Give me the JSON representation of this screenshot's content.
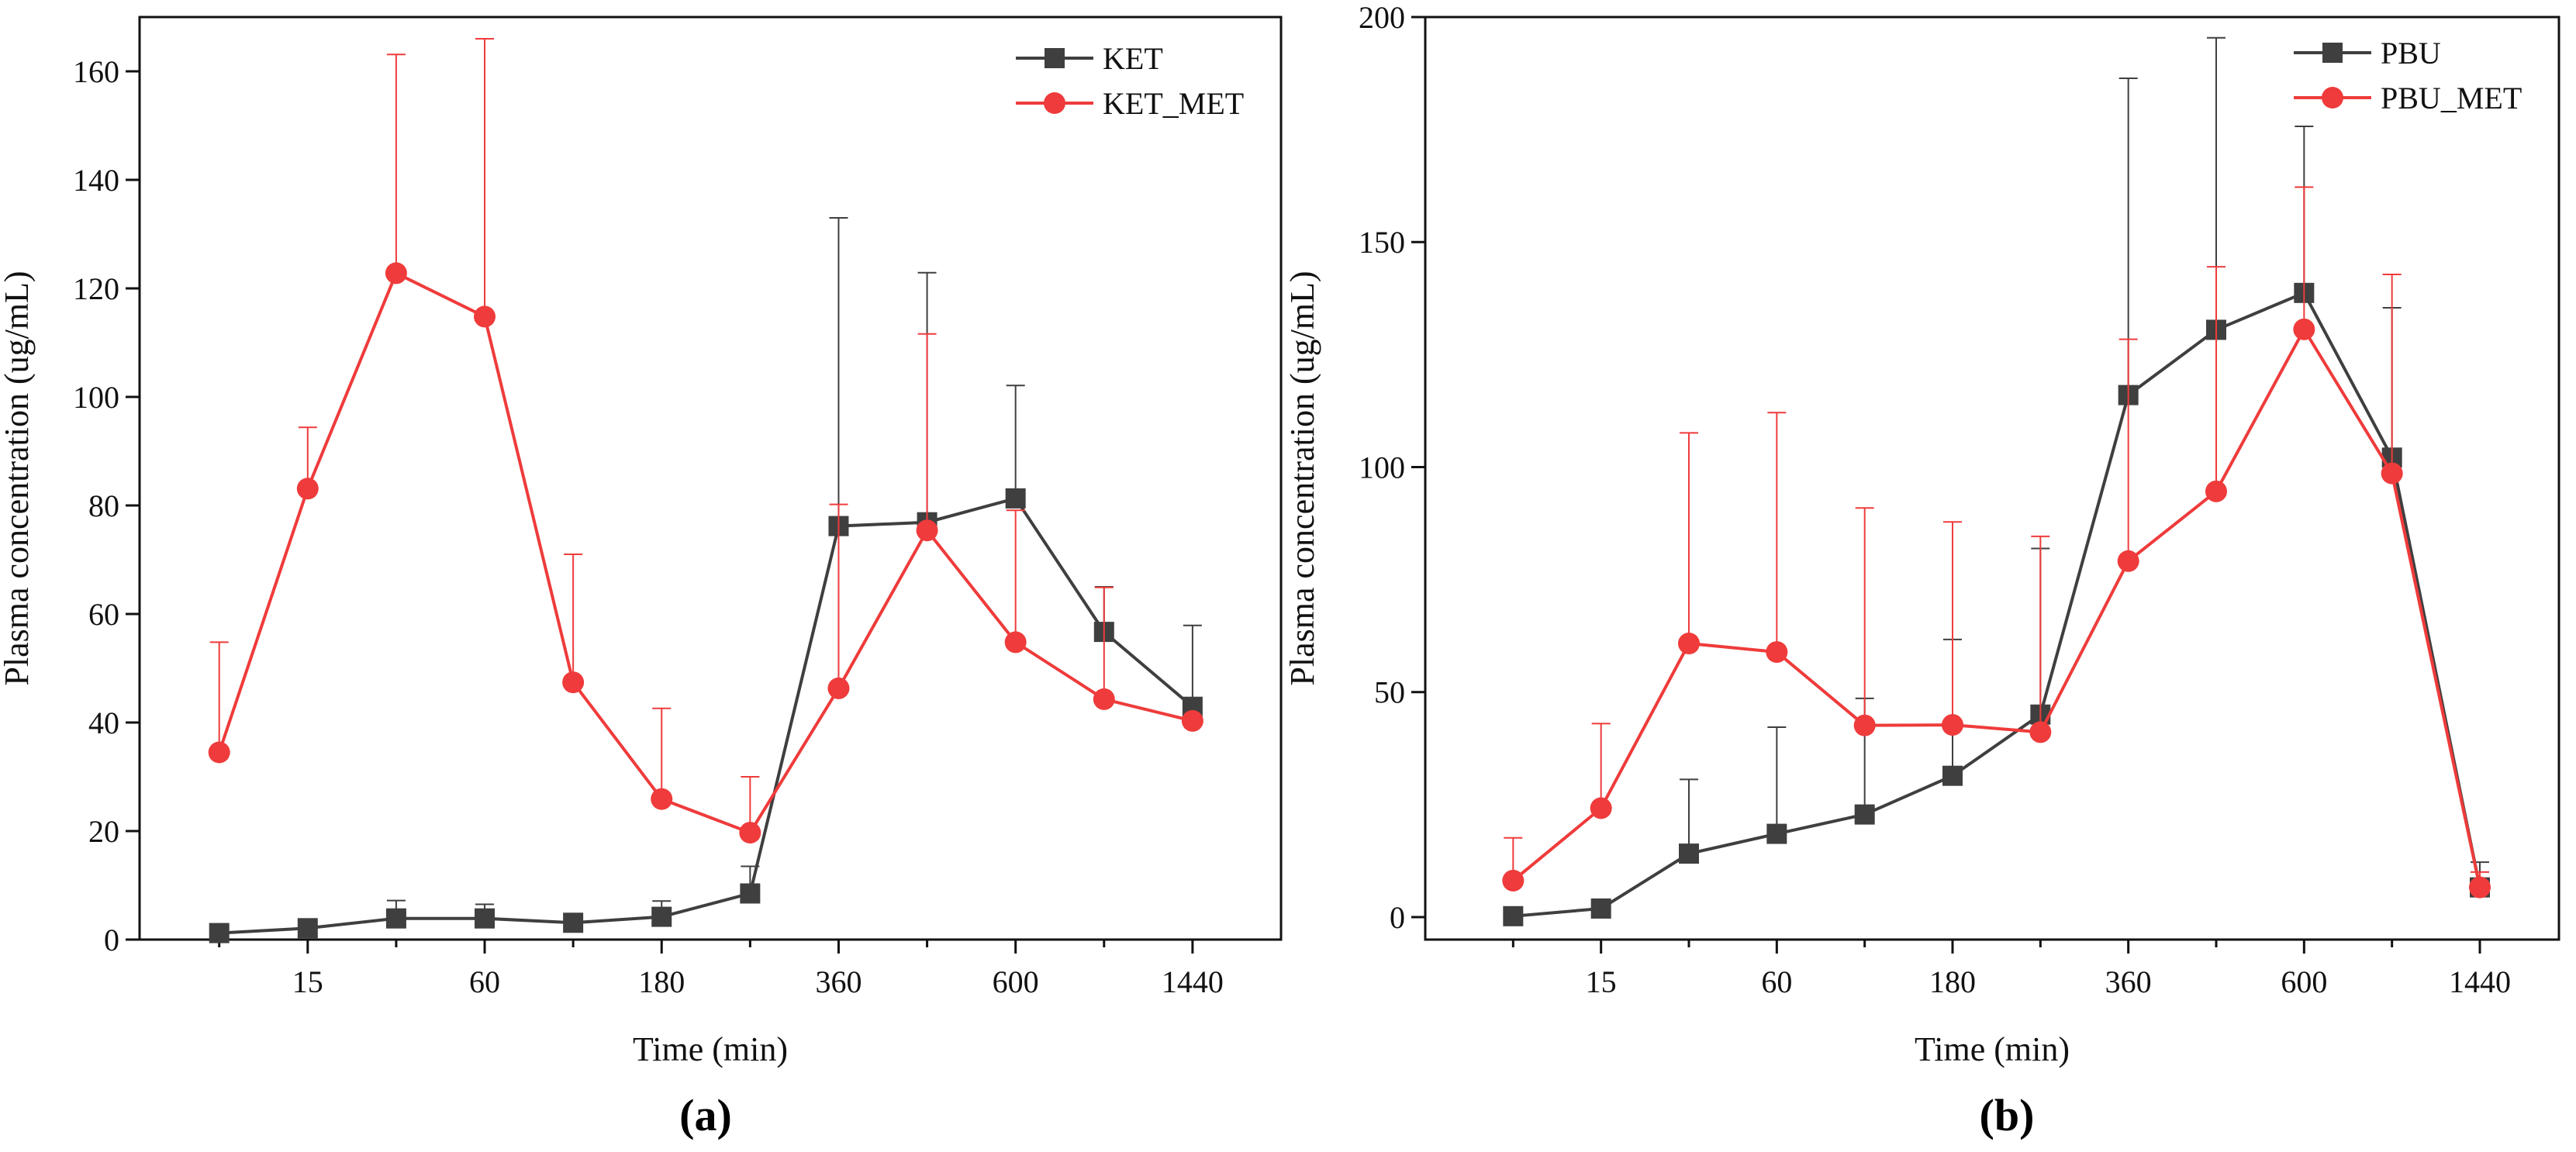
{
  "colors": {
    "series_dark": "#3f3f3f",
    "series_red": "#ef3b3b",
    "axis": "#111111",
    "background": "#ffffff"
  },
  "chart_data": [
    {
      "type": "line",
      "panel_label": "(a)",
      "xlabel": "Time (min)",
      "ylabel": "Plasma concentration (ug/mL)",
      "ylim": [
        0,
        170
      ],
      "yticks": [
        0,
        20,
        40,
        60,
        80,
        100,
        120,
        140,
        160
      ],
      "x_positions": [
        0,
        1,
        2,
        3,
        4,
        5,
        6,
        7,
        8,
        9,
        10,
        11
      ],
      "x_tick_positions": [
        1,
        3,
        5,
        7,
        9,
        11
      ],
      "x_tick_labels": [
        "15",
        "60",
        "180",
        "360",
        "600",
        "1440"
      ],
      "xlim": [
        -0.9,
        12.0
      ],
      "legend_position": "top-right",
      "series": [
        {
          "name": "KET",
          "color": "#3f3f3f",
          "marker": "square",
          "values": [
            1.2,
            2.1,
            3.9,
            3.9,
            3.1,
            4.2,
            8.5,
            76.2,
            76.9,
            81.3,
            56.7,
            42.9
          ],
          "errors": [
            0,
            0,
            3.3,
            2.6,
            0,
            2.9,
            5.0,
            56.8,
            46.0,
            20.8,
            8.3,
            15.0
          ]
        },
        {
          "name": "KET_MET",
          "color": "#ef3b3b",
          "marker": "circle",
          "values": [
            34.5,
            83.1,
            122.8,
            114.8,
            47.4,
            25.9,
            19.7,
            46.3,
            75.4,
            54.8,
            44.3,
            40.3
          ],
          "errors": [
            20.3,
            11.3,
            40.3,
            51.2,
            23.6,
            16.7,
            10.3,
            33.9,
            36.2,
            24.3,
            20.6,
            0
          ]
        }
      ]
    },
    {
      "type": "line",
      "panel_label": "(b)",
      "xlabel": "Time (min)",
      "ylabel": "Plasma concentration (ug/mL)",
      "ylim": [
        -5,
        200
      ],
      "yticks": [
        0,
        50,
        100,
        150,
        200
      ],
      "x_positions": [
        0,
        1,
        2,
        3,
        4,
        5,
        6,
        7,
        8,
        9,
        10,
        11
      ],
      "x_tick_positions": [
        1,
        3,
        5,
        7,
        9,
        11
      ],
      "x_tick_labels": [
        "15",
        "60",
        "180",
        "360",
        "600",
        "1440"
      ],
      "xlim": [
        -1.0,
        11.9
      ],
      "legend_position": "top-right",
      "series": [
        {
          "name": "PBU",
          "color": "#3f3f3f",
          "marker": "square",
          "values": [
            0.2,
            1.9,
            14.1,
            18.5,
            22.8,
            31.4,
            45.0,
            116.0,
            130.5,
            138.7,
            102.1,
            6.6
          ],
          "errors": [
            0,
            0,
            16.5,
            23.7,
            25.8,
            30.3,
            36.9,
            70.4,
            64.9,
            37.0,
            33.3,
            5.6
          ]
        },
        {
          "name": "PBU_MET",
          "color": "#ef3b3b",
          "marker": "circle",
          "values": [
            8.1,
            24.2,
            60.8,
            58.9,
            42.6,
            42.7,
            41.1,
            79.1,
            94.6,
            130.6,
            98.6,
            6.6
          ],
          "errors": [
            9.5,
            18.8,
            46.8,
            53.2,
            48.3,
            45.1,
            43.5,
            49.3,
            49.9,
            31.6,
            44.2,
            3.4
          ]
        }
      ]
    }
  ]
}
